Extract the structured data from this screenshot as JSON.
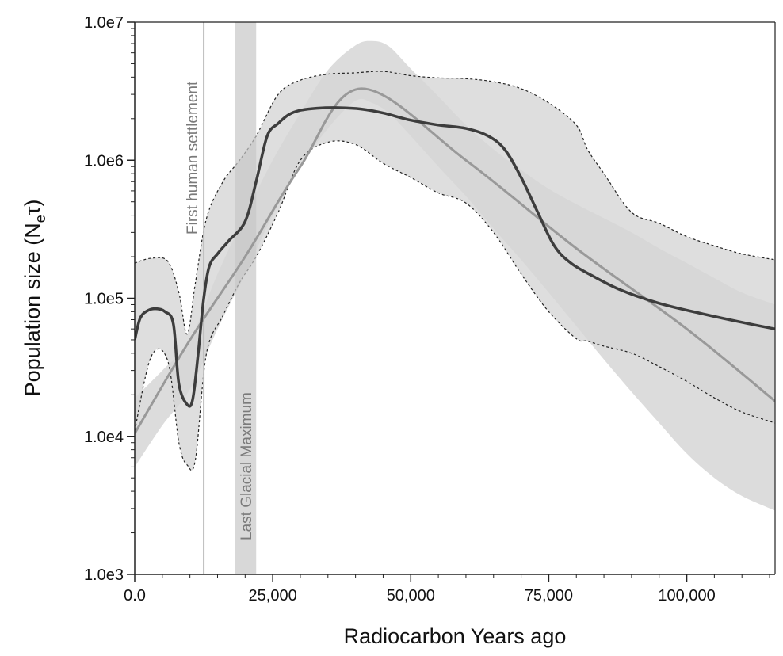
{
  "chart_data": {
    "type": "line",
    "xlabel": "Radiocarbon Years ago",
    "ylabel": "Population size (N",
    "ylabel_subscript": "e",
    "ylabel_tail": "τ)",
    "xlim": [
      0,
      116000
    ],
    "ylim": [
      1000,
      10000000
    ],
    "yscale": "log",
    "xticks": [
      0,
      25000,
      50000,
      75000,
      100000
    ],
    "xtick_labels": [
      "0.0",
      "25,000",
      "50,000",
      "75,000",
      "100,000"
    ],
    "yticks": [
      1000,
      10000,
      100000,
      1000000,
      10000000
    ],
    "ytick_labels": [
      "1.0e3",
      "1.0e4",
      "1.0e5",
      "1.0e6",
      "1.0e7"
    ],
    "grid": false,
    "annotations": [
      {
        "label": "First human settlement",
        "type": "vline",
        "x": 12500
      },
      {
        "label": "Last Glacial Maximum",
        "type": "vband",
        "x_range": [
          18200,
          22000
        ]
      }
    ],
    "series": [
      {
        "kind": "band",
        "color": "#d6d6d6",
        "x": [
          0,
          5000,
          10000,
          15000,
          20000,
          25000,
          30000,
          35000,
          40000,
          43000,
          46000,
          50000,
          55000,
          60000,
          65000,
          70000,
          75000,
          80000,
          85000,
          90000,
          95000,
          100000,
          105000,
          110000,
          116000
        ],
        "lower": [
          6000,
          12000,
          22000,
          60000,
          150000,
          400000,
          900000,
          1700000,
          2700000,
          2600000,
          2200000,
          1500000,
          900000,
          550000,
          320000,
          190000,
          110000,
          63000,
          36000,
          21000,
          12500,
          7500,
          5000,
          3700,
          2900
        ],
        "upper": [
          19000,
          30000,
          50000,
          150000,
          400000,
          1000000,
          2200000,
          4500000,
          6800000,
          7300000,
          6700000,
          4600000,
          2900000,
          1800000,
          1200000,
          850000,
          620000,
          480000,
          380000,
          300000,
          230000,
          180000,
          140000,
          110000,
          90000
        ]
      },
      {
        "kind": "hpd",
        "color": "#dedede",
        "x": [
          0,
          3000,
          6000,
          8000,
          9500,
          11000,
          13000,
          16000,
          19000,
          22000,
          26000,
          30000,
          35000,
          40000,
          45000,
          50000,
          55000,
          60000,
          65000,
          70000,
          75000,
          80000,
          82000,
          85000,
          90000,
          95000,
          100000,
          105000,
          110000,
          116000
        ],
        "lower": [
          11000,
          38000,
          35000,
          9000,
          6200,
          6800,
          40000,
          75000,
          130000,
          200000,
          420000,
          1000000,
          1350000,
          1300000,
          950000,
          750000,
          580000,
          490000,
          300000,
          150000,
          80000,
          51000,
          49000,
          45000,
          40000,
          32000,
          25000,
          19000,
          15000,
          12500
        ],
        "upper": [
          180000,
          195000,
          185000,
          110000,
          55000,
          130000,
          380000,
          700000,
          1000000,
          1500000,
          3000000,
          3800000,
          4200000,
          4300000,
          4400000,
          4100000,
          3950000,
          3900000,
          3700000,
          3300000,
          2600000,
          1800000,
          1200000,
          800000,
          420000,
          350000,
          280000,
          240000,
          210000,
          190000
        ]
      },
      {
        "kind": "line",
        "color": "#999999",
        "x": [
          0,
          10000,
          20000,
          30000,
          41000,
          60000,
          80000,
          100000,
          116000
        ],
        "values": [
          10500,
          50000,
          200000,
          900000,
          3300000,
          1000000,
          230000,
          60000,
          18000
        ]
      },
      {
        "kind": "line",
        "color": "#3d3d3d",
        "x": [
          0,
          1000,
          2500,
          4000,
          5500,
          7000,
          8000,
          9500,
          10500,
          11500,
          12500,
          13500,
          15000,
          17000,
          20000,
          22000,
          24000,
          26000,
          28000,
          30000,
          33000,
          37000,
          41000,
          45000,
          50000,
          55000,
          60000,
          64000,
          67000,
          70000,
          73000,
          76000,
          79000,
          83000,
          88000,
          95000,
          103000,
          110000,
          116000
        ],
        "values": [
          50000,
          72000,
          82000,
          84000,
          80000,
          65000,
          24000,
          17000,
          18500,
          40000,
          100000,
          170000,
          210000,
          260000,
          360000,
          700000,
          1500000,
          1850000,
          2150000,
          2300000,
          2380000,
          2400000,
          2350000,
          2200000,
          1950000,
          1800000,
          1700000,
          1500000,
          1200000,
          750000,
          420000,
          240000,
          180000,
          145000,
          115000,
          92000,
          77000,
          67000,
          60000
        ]
      }
    ]
  }
}
